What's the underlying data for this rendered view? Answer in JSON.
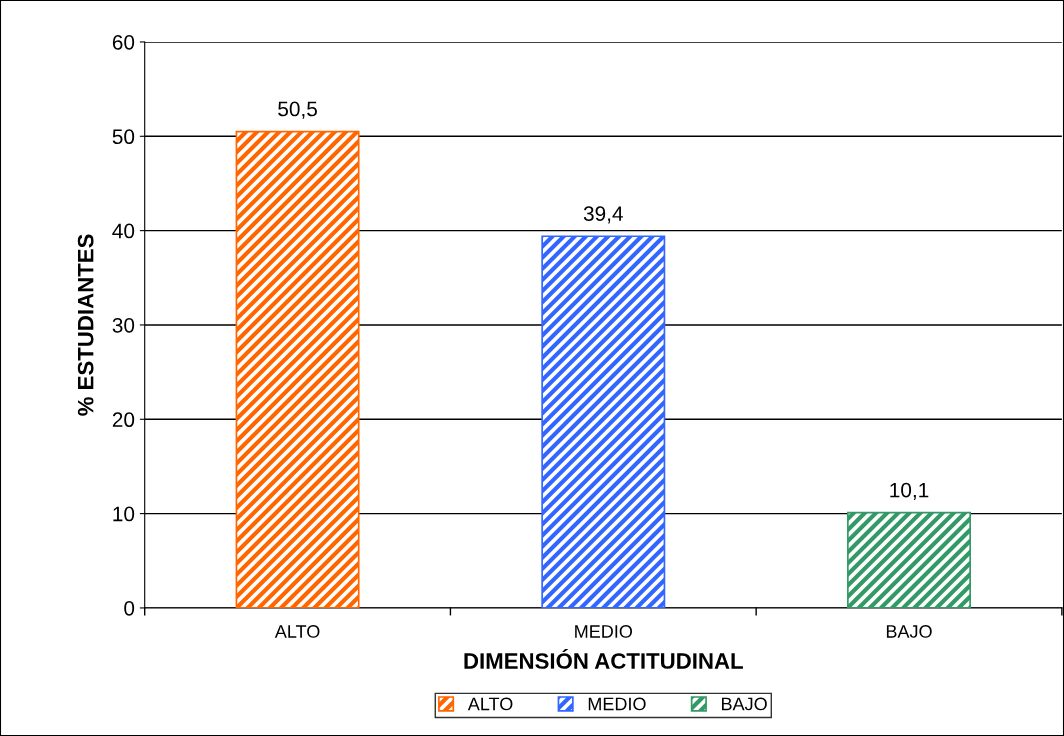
{
  "chart_data": {
    "type": "bar",
    "xlabel": "DIMENSIÓN ACTITUDINAL",
    "ylabel": "% ESTUDIANTES",
    "categories": [
      "ALTO",
      "MEDIO",
      "BAJO"
    ],
    "series": [
      {
        "name": "ALTO",
        "color": "#ff6600",
        "values": [
          50.5,
          null,
          null
        ]
      },
      {
        "name": "MEDIO",
        "color": "#3366ff",
        "values": [
          null,
          39.4,
          null
        ]
      },
      {
        "name": "BAJO",
        "color": "#339966",
        "values": [
          null,
          null,
          10.1
        ]
      }
    ],
    "value_labels": [
      "50,5",
      "39,4",
      "10,1"
    ],
    "ylim": [
      0,
      60
    ],
    "yticks": [
      0,
      10,
      20,
      30,
      40,
      50,
      60
    ],
    "grid": "y",
    "legend": "bottom"
  }
}
